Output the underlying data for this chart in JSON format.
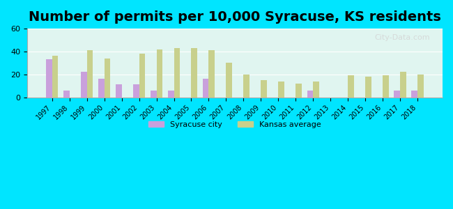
{
  "title": "Number of permits per 10,000 Syracuse, KS residents",
  "years": [
    1997,
    1998,
    1999,
    2000,
    2001,
    2002,
    2003,
    2004,
    2005,
    2006,
    2007,
    2008,
    2009,
    2010,
    2011,
    2012,
    2013,
    2014,
    2015,
    2016,
    2017,
    2018
  ],
  "syracuse": [
    33,
    6,
    22,
    16,
    11,
    11,
    6,
    6,
    0,
    16,
    0,
    0,
    0,
    0,
    0,
    6,
    0,
    0,
    0,
    0,
    6,
    6
  ],
  "kansas": [
    36,
    0,
    41,
    34,
    0,
    38,
    42,
    43,
    43,
    41,
    30,
    20,
    15,
    14,
    12,
    14,
    0,
    19,
    18,
    19,
    22,
    20
  ],
  "syracuse_color": "#c9a0dc",
  "kansas_color": "#c8d08c",
  "background_color": "#e0f5f0",
  "outer_background": "#00e5ff",
  "ylim": [
    0,
    60
  ],
  "yticks": [
    0,
    20,
    40,
    60
  ],
  "title_fontsize": 14,
  "bar_width": 0.35,
  "legend_syracuse": "Syracuse city",
  "legend_kansas": "Kansas average"
}
